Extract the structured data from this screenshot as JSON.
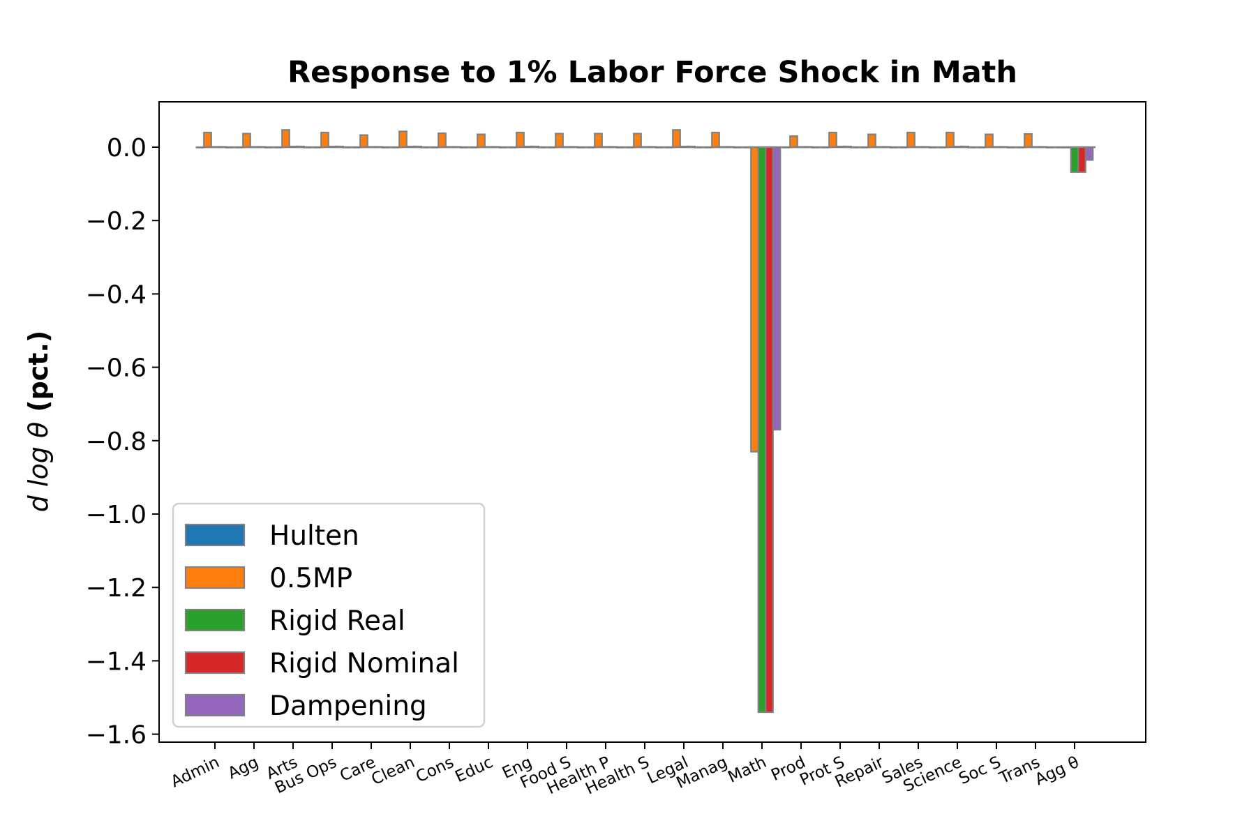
{
  "chart_data": {
    "type": "bar",
    "title": "Response to 1% Labor Force Shock in Math",
    "ylabel_math": "d log θ",
    "ylabel_unit": "(pct.)",
    "xlabel": "",
    "ylim": [
      -1.62,
      0.13
    ],
    "yticks": [
      0.0,
      -0.2,
      -0.4,
      -0.6,
      -0.8,
      -1.0,
      -1.2,
      -1.4,
      -1.6
    ],
    "ytick_labels": [
      "0.0",
      "−0.2",
      "−0.4",
      "−0.6",
      "−0.8",
      "−1.0",
      "−1.2",
      "−1.4",
      "−1.6"
    ],
    "grid": false,
    "legend_position": "lower-left",
    "categories": [
      "Admin",
      "Agg",
      "Arts",
      "Bus Ops",
      "Care",
      "Clean",
      "Cons",
      "Educ",
      "Eng",
      "Food S",
      "Health P",
      "Health S",
      "Legal",
      "Manag",
      "Math",
      "Prod",
      "Prot S",
      "Repair",
      "Sales",
      "Science",
      "Soc S",
      "Trans",
      "Agg θ"
    ],
    "series": [
      {
        "name": "Hulten",
        "color": "#1f77b4",
        "values": [
          0.0,
          0.0,
          0.0,
          0.0,
          0.0,
          0.0,
          0.0,
          0.0,
          0.0,
          0.0,
          0.0,
          0.0,
          0.0,
          0.0,
          0.0,
          0.0,
          0.0,
          0.0,
          0.0,
          0.0,
          0.0,
          0.0,
          0.0
        ]
      },
      {
        "name": "0.5MP",
        "color": "#ff7f0e",
        "values": [
          0.04,
          0.037,
          0.047,
          0.04,
          0.033,
          0.043,
          0.038,
          0.035,
          0.04,
          0.037,
          0.037,
          0.037,
          0.047,
          0.04,
          -0.83,
          0.03,
          0.04,
          0.035,
          0.04,
          0.04,
          0.035,
          0.036,
          0.0
        ]
      },
      {
        "name": "Rigid Real",
        "color": "#2ca02c",
        "values": [
          0.001,
          0.001,
          0.002,
          0.002,
          0.001,
          0.002,
          0.001,
          0.001,
          0.002,
          0.001,
          0.001,
          0.001,
          0.002,
          0.001,
          -1.54,
          0.001,
          0.002,
          0.001,
          0.001,
          0.002,
          0.001,
          0.001,
          -0.068
        ]
      },
      {
        "name": "Rigid Nominal",
        "color": "#d62728",
        "values": [
          0.001,
          0.001,
          0.002,
          0.002,
          0.001,
          0.002,
          0.001,
          0.001,
          0.002,
          0.001,
          0.001,
          0.001,
          0.002,
          0.001,
          -1.54,
          0.001,
          0.002,
          0.001,
          0.001,
          0.002,
          0.001,
          0.001,
          -0.068
        ]
      },
      {
        "name": "Dampening",
        "color": "#9467bd",
        "values": [
          0.0,
          0.0,
          0.0,
          0.0,
          0.0,
          0.0,
          0.0,
          0.0,
          0.0,
          0.0,
          0.0,
          0.0,
          0.0,
          0.0,
          -0.77,
          0.0,
          0.0,
          0.0,
          0.0,
          0.0,
          0.0,
          0.0,
          -0.035
        ]
      }
    ]
  }
}
